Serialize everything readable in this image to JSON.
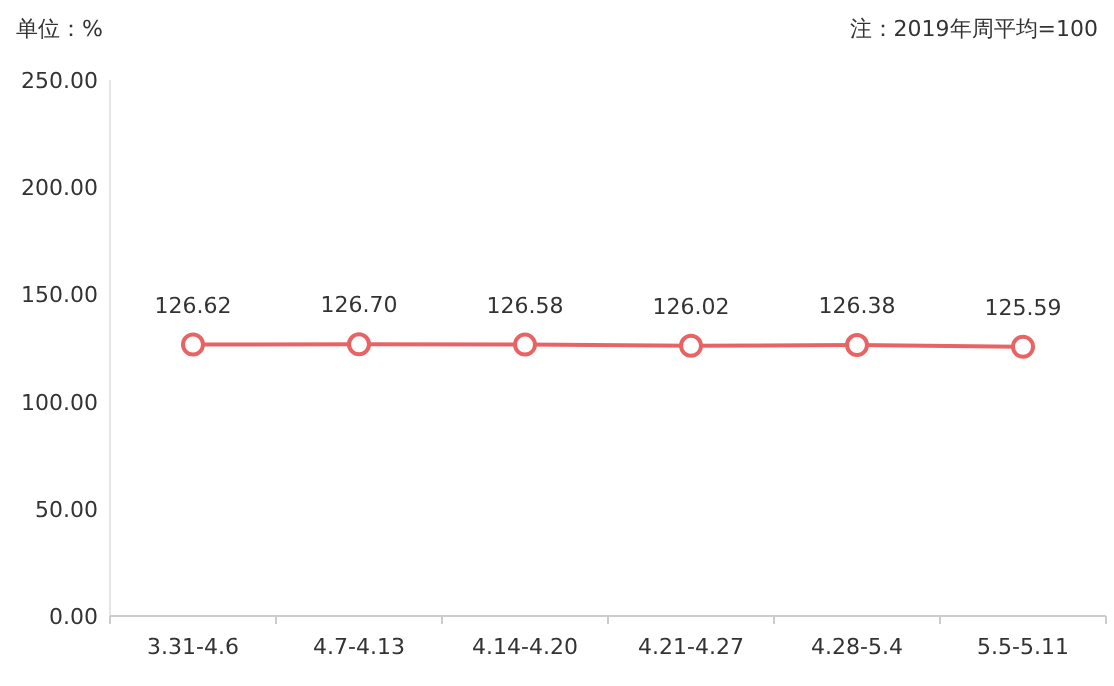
{
  "chart_data": {
    "type": "line",
    "ylabel": "单位：%",
    "annotations": [
      "注：2019年周平均=100"
    ],
    "categories": [
      "3.31-4.6",
      "4.7-4.13",
      "4.14-4.20",
      "4.21-4.27",
      "4.28-5.4",
      "5.5-5.11"
    ],
    "values": [
      126.62,
      126.7,
      126.58,
      126.02,
      126.38,
      125.59
    ],
    "value_labels": [
      "126.62",
      "126.70",
      "126.58",
      "126.02",
      "126.38",
      "125.59"
    ],
    "color": "#e86464",
    "marker": "circle",
    "ylim": [
      0,
      250
    ],
    "yticks": [
      {
        "value": 0,
        "label": "0.00"
      },
      {
        "value": 50,
        "label": "50.00"
      },
      {
        "value": 100,
        "label": "100.00"
      },
      {
        "value": 150,
        "label": "150.00"
      },
      {
        "value": 200,
        "label": "200.00"
      },
      {
        "value": 250,
        "label": "250.00"
      }
    ]
  }
}
